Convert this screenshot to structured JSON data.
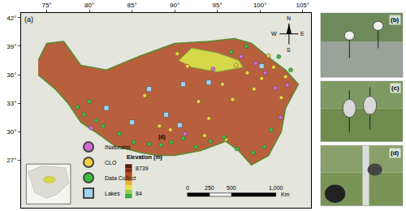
{
  "chart_data": {
    "type": "map",
    "panel_labels": {
      "map": "(a)",
      "photos": [
        "(b)",
        "(c)",
        "(d)"
      ]
    },
    "xlim": [
      72,
      106
    ],
    "ylim": [
      22,
      42.5
    ],
    "xticks": [
      {
        "value": 75,
        "label": "75°"
      },
      {
        "value": 80,
        "label": "80°"
      },
      {
        "value": 85,
        "label": "85°"
      },
      {
        "value": 90,
        "label": "90°"
      },
      {
        "value": 95,
        "label": "95°"
      },
      {
        "value": 100,
        "label": "100°"
      },
      {
        "value": 105,
        "label": "105°"
      }
    ],
    "yticks": [
      {
        "value": 27,
        "label": "27°"
      },
      {
        "value": 30,
        "label": "30°"
      },
      {
        "value": 33,
        "label": "33°"
      },
      {
        "value": 36,
        "label": "36°"
      },
      {
        "value": 39,
        "label": "39°"
      },
      {
        "value": 42,
        "label": "42°"
      }
    ],
    "outline": {
      "color": "#b8603e",
      "lon": [
        74,
        75,
        77,
        79,
        82,
        86,
        90,
        94,
        97,
        99,
        101.5,
        103,
        104.5,
        103,
        102.5,
        101,
        99,
        97.5,
        96,
        93,
        90,
        88,
        86,
        83,
        81,
        79,
        77.5,
        76,
        74
      ],
      "lat": [
        37.5,
        39.3,
        39.5,
        37,
        36.5,
        38,
        39.3,
        39.5,
        39.8,
        39.3,
        37.5,
        36.5,
        35,
        32.5,
        30,
        27.5,
        26.5,
        28,
        29,
        28,
        27.5,
        27.5,
        27.8,
        28.5,
        29.8,
        31,
        33,
        34.5,
        36
      ]
    },
    "basin": {
      "color": "#d6d84a",
      "lon": [
        90.5,
        92,
        95,
        97.5,
        98,
        95,
        92
      ],
      "lat": [
        37.5,
        38.8,
        38.3,
        37.5,
        36.8,
        36.3,
        36.8
      ]
    },
    "series": [
      {
        "name": "INaturalist",
        "color": "#d46ad8",
        "marker": "circle",
        "lon": [
          80.2,
          91.2,
          94.5,
          97.8,
          99.5,
          100.6,
          101.8,
          103.2,
          102.4
        ],
        "lat": [
          30.4,
          29.8,
          36.6,
          37.9,
          37.2,
          36.2,
          34.6,
          34.9,
          31.5
        ]
      },
      {
        "name": "CLO",
        "color": "#f2d23c",
        "marker": "circle",
        "lon": [
          86.5,
          88.2,
          90.3,
          91.5,
          92.8,
          94.0,
          95.6,
          96.8,
          97.2,
          98.5,
          99.3,
          100.2,
          101.0,
          101.6,
          102.5,
          93.5,
          96.0,
          89.5,
          103.0
        ],
        "lat": [
          33.8,
          30.6,
          38.2,
          36.9,
          33.2,
          31.4,
          35.0,
          33.4,
          37.0,
          36.2,
          34.5,
          35.6,
          38.0,
          36.8,
          33.6,
          29.6,
          29.2,
          30.2,
          35.8
        ]
      },
      {
        "name": "Data Collect",
        "color": "#3cc03c",
        "marker": "circle",
        "lon": [
          78.6,
          79.4,
          80.0,
          80.8,
          81.6,
          83.5,
          85.2,
          87.0,
          88.4,
          89.6,
          91.0,
          92.5,
          94.2,
          95.8,
          97.3,
          99.2,
          100.5,
          101.3,
          102.2,
          103.6,
          98.4,
          96.6
        ],
        "lat": [
          32.6,
          31.8,
          33.2,
          31.2,
          30.6,
          29.8,
          28.9,
          28.7,
          28.6,
          28.9,
          29.3,
          28.4,
          29.0,
          29.4,
          28.2,
          27.8,
          28.4,
          30.2,
          37.9,
          36.5,
          39.0,
          38.4
        ]
      },
      {
        "name": "Lakes",
        "color": "#9fd3f0",
        "marker": "square",
        "lon": [
          100.2,
          90.6,
          89.0,
          85.0,
          82.0,
          87.0,
          91.0,
          94.0
        ],
        "lat": [
          36.9,
          30.7,
          31.8,
          31.0,
          32.5,
          34.5,
          35.0,
          35.2
        ]
      }
    ],
    "elevation": {
      "title": "Elevation (m)",
      "max": 8739,
      "min": 84
    },
    "scale_bar": {
      "ticks": [
        0,
        250,
        500,
        {
          "value": 1000,
          "label": "1,000"
        }
      ],
      "unit": "Km"
    },
    "compass": {
      "north": "N",
      "east": "E",
      "south": "S",
      "west": "W"
    },
    "annotations": [
      {
        "text": "(d)",
        "lon": 88.5,
        "lat": 28.9
      }
    ],
    "legend": "lower left"
  }
}
